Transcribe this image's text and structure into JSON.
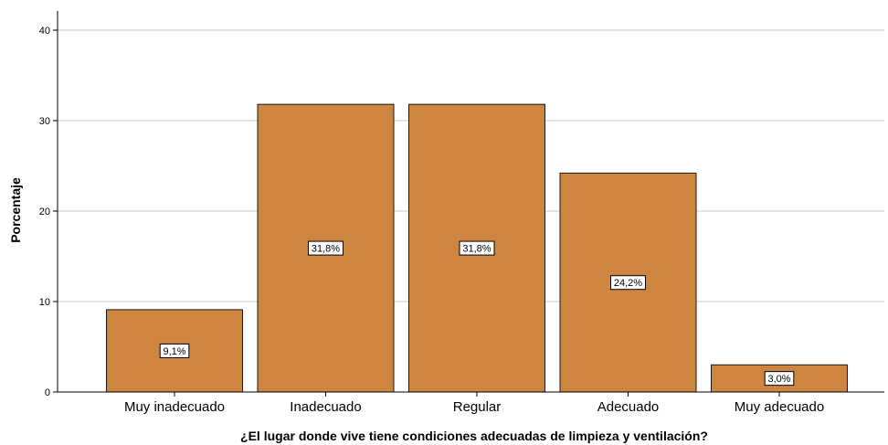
{
  "chart_data": {
    "type": "bar",
    "categories": [
      "Muy inadecuado",
      "Inadecuado",
      "Regular",
      "Adecuado",
      "Muy adecuado"
    ],
    "values": [
      9.1,
      31.8,
      31.8,
      24.2,
      3.0
    ],
    "data_labels": [
      "9,1%",
      "31,8%",
      "31,8%",
      "24,2%",
      "3,0%"
    ],
    "xlabel": "¿El lugar donde vive tiene condiciones adecuadas de limpieza y ventilación?",
    "ylabel": "Porcentaje",
    "ylim": [
      0,
      40
    ],
    "yticks": [
      0,
      10,
      20,
      30,
      40
    ],
    "grid": true,
    "bar_color": "#cd853f"
  }
}
